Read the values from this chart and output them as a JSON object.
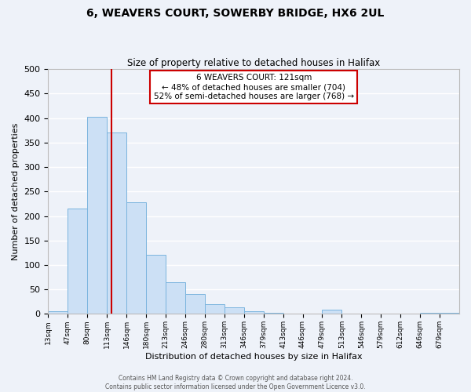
{
  "title": "6, WEAVERS COURT, SOWERBY BRIDGE, HX6 2UL",
  "subtitle": "Size of property relative to detached houses in Halifax",
  "xlabel": "Distribution of detached houses by size in Halifax",
  "ylabel": "Number of detached properties",
  "bar_color": "#cce0f5",
  "bar_edge_color": "#7ab4de",
  "background_color": "#eef2f9",
  "grid_color": "#ffffff",
  "bin_labels": [
    "13sqm",
    "47sqm",
    "80sqm",
    "113sqm",
    "146sqm",
    "180sqm",
    "213sqm",
    "246sqm",
    "280sqm",
    "313sqm",
    "346sqm",
    "379sqm",
    "413sqm",
    "446sqm",
    "479sqm",
    "513sqm",
    "546sqm",
    "579sqm",
    "612sqm",
    "646sqm",
    "679sqm"
  ],
  "bar_heights": [
    5,
    215,
    403,
    370,
    228,
    120,
    65,
    40,
    20,
    14,
    5,
    2,
    0,
    0,
    8,
    0,
    0,
    0,
    0,
    2,
    2
  ],
  "vline_position": 8,
  "vline_color": "#cc0000",
  "annotation_title": "6 WEAVERS COURT: 121sqm",
  "annotation_line1": "← 48% of detached houses are smaller (704)",
  "annotation_line2": "52% of semi-detached houses are larger (768) →",
  "annotation_box_color": "#ffffff",
  "annotation_box_edge_color": "#cc0000",
  "ylim": [
    0,
    500
  ],
  "yticks": [
    0,
    50,
    100,
    150,
    200,
    250,
    300,
    350,
    400,
    450,
    500
  ],
  "footer1": "Contains HM Land Registry data © Crown copyright and database right 2024.",
  "footer2": "Contains public sector information licensed under the Open Government Licence v3.0."
}
